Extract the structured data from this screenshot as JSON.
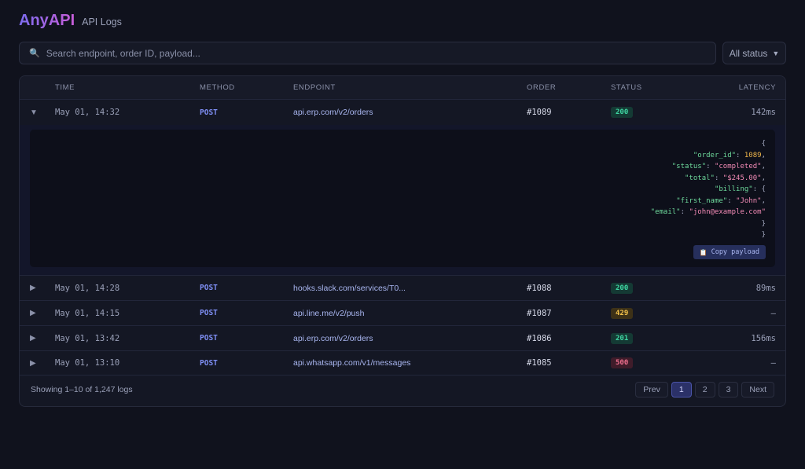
{
  "app": {
    "name": "AnyAPI",
    "page": "API Logs"
  },
  "search": {
    "placeholder": "Search endpoint, order ID, payload..."
  },
  "filter": {
    "label": "All status"
  },
  "table": {
    "columns": [
      "TIME",
      "METHOD",
      "ENDPOINT",
      "ORDER",
      "STATUS",
      "LATENCY"
    ],
    "rows": [
      {
        "toggle": "▼",
        "time": "May 01, 14:32",
        "method": "POST",
        "endpoint": "api.erp.com/v2/orders",
        "order": "#1089",
        "status": "200",
        "latency": "142ms"
      },
      {
        "toggle": "▶",
        "time": "May 01, 14:28",
        "method": "POST",
        "endpoint": "hooks.slack.com/services/T0...",
        "order": "#1088",
        "status": "200",
        "latency": "89ms"
      },
      {
        "toggle": "▶",
        "time": "May 01, 14:15",
        "method": "POST",
        "endpoint": "api.line.me/v2/push",
        "order": "#1087",
        "status": "429",
        "latency": "–"
      },
      {
        "toggle": "▶",
        "time": "May 01, 13:42",
        "method": "POST",
        "endpoint": "api.erp.com/v2/orders",
        "order": "#1086",
        "status": "201",
        "latency": "156ms"
      },
      {
        "toggle": "▶",
        "time": "May 01, 13:10",
        "method": "POST",
        "endpoint": "api.whatsapp.com/v1/messages",
        "order": "#1085",
        "status": "500",
        "latency": "–"
      }
    ]
  },
  "payload": {
    "brace_open": "{",
    "order_id_key": "\"order_id\"",
    "order_id_val": "1089",
    "status_key": "\"status\"",
    "status_val": "\"completed\"",
    "total_key": "\"total\"",
    "total_val": "\"$245.00\"",
    "billing_key": "\"billing\"",
    "billing_open": "{",
    "first_name_key": "\"first_name\"",
    "first_name_val": "\"John\"",
    "email_key": "\"email\"",
    "email_val": "\"john@example.com\"",
    "billing_close": "}",
    "brace_close": "}",
    "copy_label": "Copy payload"
  },
  "footer": {
    "showing": "Showing 1–10 of 1,247 logs",
    "prev": "Prev",
    "pages": [
      "1",
      "2",
      "3"
    ],
    "next": "Next",
    "current_page": "1"
  },
  "colors": {
    "background": "#10121d",
    "accent": "#7f8ff5",
    "status_success": "#3fd7a3",
    "status_warning": "#f2c14a",
    "status_error": "#f0708f"
  },
  "icons": {
    "search": "search-icon",
    "caret": "chevron-down-icon",
    "copy": "clipboard-icon",
    "expand": "chevron-right-icon",
    "collapse": "chevron-down-icon"
  }
}
